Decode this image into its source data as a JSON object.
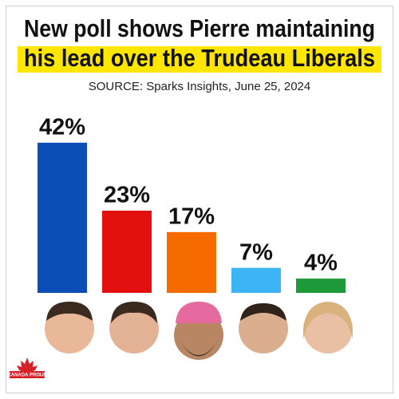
{
  "chart_data": {
    "type": "bar",
    "title": [
      "New poll shows Pierre maintaining",
      "his lead over the Trudeau Liberals"
    ],
    "subtitle": "SOURCE: Sparks Insights, June 25, 2024",
    "categories": [
      null,
      null,
      null,
      null,
      null
    ],
    "values": [
      42,
      23,
      17,
      7,
      4
    ],
    "value_labels": [
      "42%",
      "23%",
      "17%",
      "7%",
      "4%"
    ],
    "colors": [
      "#0b4fb6",
      "#e2110f",
      "#f56b00",
      "#3db5f4",
      "#1f9a3b"
    ],
    "logo": "CANADA PROUD"
  }
}
